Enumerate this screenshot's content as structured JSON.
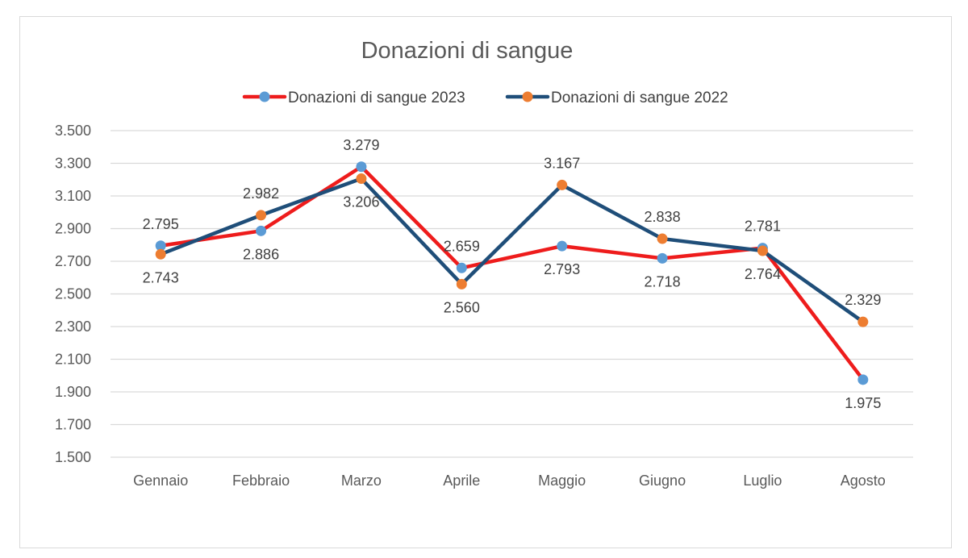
{
  "chart_data": {
    "type": "line",
    "title": "Donazioni di sangue",
    "categories": [
      "Gennaio",
      "Febbraio",
      "Marzo",
      "Aprile",
      "Maggio",
      "Giugno",
      "Luglio",
      "Agosto"
    ],
    "y_ticks": [
      "1.500",
      "1.700",
      "1.900",
      "2.100",
      "2.300",
      "2.500",
      "2.700",
      "2.900",
      "3.100",
      "3.300",
      "3.500"
    ],
    "ylim": [
      1500,
      3500
    ],
    "grid": true,
    "legend_position": "top",
    "series": [
      {
        "name": "Donazioni di sangue 2023",
        "line_color": "#ee1c1c",
        "marker_color": "#5b9bd5",
        "values": [
          2795,
          2886,
          3279,
          2659,
          2793,
          2718,
          2781,
          1975
        ],
        "labels": [
          "2.795",
          "2.886",
          "3.279",
          "2.659",
          "2.793",
          "2.718",
          "2.781",
          "1.975"
        ]
      },
      {
        "name": "Donazioni di sangue 2022",
        "line_color": "#1f4e79",
        "marker_color": "#ed7d31",
        "values": [
          2743,
          2982,
          3206,
          2560,
          3167,
          2838,
          2764,
          2329
        ],
        "labels": [
          "2.743",
          "2.982",
          "3.206",
          "2.560",
          "3.167",
          "2.838",
          "2.764",
          "2.329"
        ]
      }
    ]
  }
}
